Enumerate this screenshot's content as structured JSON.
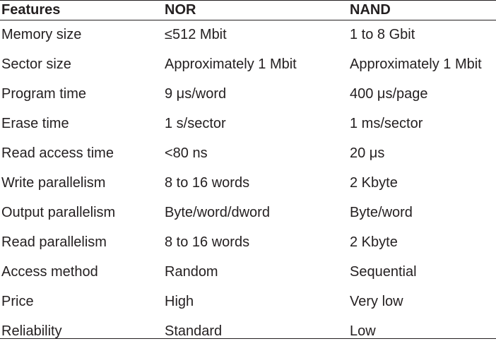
{
  "table": {
    "headers": [
      "Features",
      "NOR",
      "NAND"
    ],
    "rows": [
      [
        "Memory size",
        "≤512 Mbit",
        "1 to 8 Gbit"
      ],
      [
        "Sector size",
        "Approximately 1 Mbit",
        "Approximately 1 Mbit"
      ],
      [
        "Program time",
        "9 μs/word",
        "400 μs/page"
      ],
      [
        "Erase time",
        "1 s/sector",
        "1 ms/sector"
      ],
      [
        "Read access time",
        "<80 ns",
        "20 μs"
      ],
      [
        "Write parallelism",
        "8 to 16 words",
        "2 Kbyte"
      ],
      [
        "Output parallelism",
        "Byte/word/dword",
        "Byte/word"
      ],
      [
        "Read parallelism",
        "8 to 16 words",
        "2 Kbyte"
      ],
      [
        "Access method",
        "Random",
        "Sequential"
      ],
      [
        "Price",
        "High",
        "Very low"
      ],
      [
        "Reliability",
        "Standard",
        "Low"
      ]
    ]
  }
}
